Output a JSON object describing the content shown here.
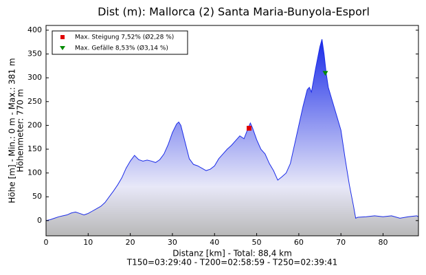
{
  "chart_data": {
    "type": "area",
    "title": "Dist (m): Mallorca (2) Santa Maria-Bunyola-Esporl",
    "ylabel": [
      "Höhe [m] - Min.: 0 m - Max.: 381 m",
      "Höhenmeter: 770 m"
    ],
    "xlabel": [
      "Distanz [km] - Total: 88,4 km",
      "T150=03:29:40 - T200=02:58:59 - T250=02:39:41"
    ],
    "x": [
      0,
      1,
      2,
      3,
      4,
      5,
      6,
      7,
      8,
      9,
      10,
      11,
      12,
      13,
      14,
      15,
      16,
      17,
      18,
      19,
      20,
      21,
      22,
      23,
      24,
      25,
      26,
      27,
      28,
      29,
      30,
      31,
      31.5,
      32,
      33,
      34,
      35,
      36,
      37,
      38,
      39,
      40,
      41,
      42,
      43,
      44,
      45,
      46,
      47,
      48,
      48.5,
      49,
      50,
      51,
      52,
      53,
      54,
      55,
      56,
      57,
      58,
      59,
      60,
      61,
      62,
      62.5,
      63,
      64,
      65,
      65.5,
      66,
      66.5,
      67,
      68,
      69,
      70,
      71,
      72,
      73,
      73.5,
      74,
      76,
      78,
      80,
      82,
      84,
      86,
      88,
      88.4
    ],
    "values": [
      0,
      2,
      5,
      8,
      10,
      12,
      16,
      18,
      15,
      12,
      15,
      20,
      25,
      30,
      38,
      50,
      62,
      75,
      90,
      110,
      125,
      137,
      128,
      125,
      127,
      125,
      122,
      128,
      140,
      160,
      185,
      203,
      207,
      200,
      165,
      130,
      118,
      115,
      110,
      105,
      108,
      115,
      130,
      140,
      150,
      158,
      168,
      178,
      172,
      195,
      205,
      195,
      170,
      150,
      140,
      120,
      105,
      85,
      92,
      100,
      120,
      160,
      200,
      240,
      275,
      280,
      270,
      320,
      365,
      381,
      350,
      310,
      280,
      250,
      220,
      190,
      130,
      75,
      30,
      5,
      7,
      8,
      10,
      8,
      10,
      5,
      8,
      10,
      8
    ],
    "color": "#1a2be8",
    "markers": [
      {
        "name": "Max. Steigung 7,52% (Ø2,28 %)",
        "color": "#e00000",
        "shape": "square",
        "x": 48.2,
        "y": 194
      },
      {
        "name": "Max. Gefälle 8,53% (Ø3,14 %)",
        "color": "#008a00",
        "shape": "triangle",
        "x": 66.3,
        "y": 310
      }
    ],
    "xlim": [
      0,
      88.4
    ],
    "ylim": [
      -32,
      410
    ],
    "xticks": [
      0,
      10,
      20,
      30,
      40,
      50,
      60,
      70,
      80
    ],
    "yticks": [
      0,
      50,
      100,
      150,
      200,
      250,
      300,
      350,
      400
    ],
    "legend": "upper left"
  }
}
